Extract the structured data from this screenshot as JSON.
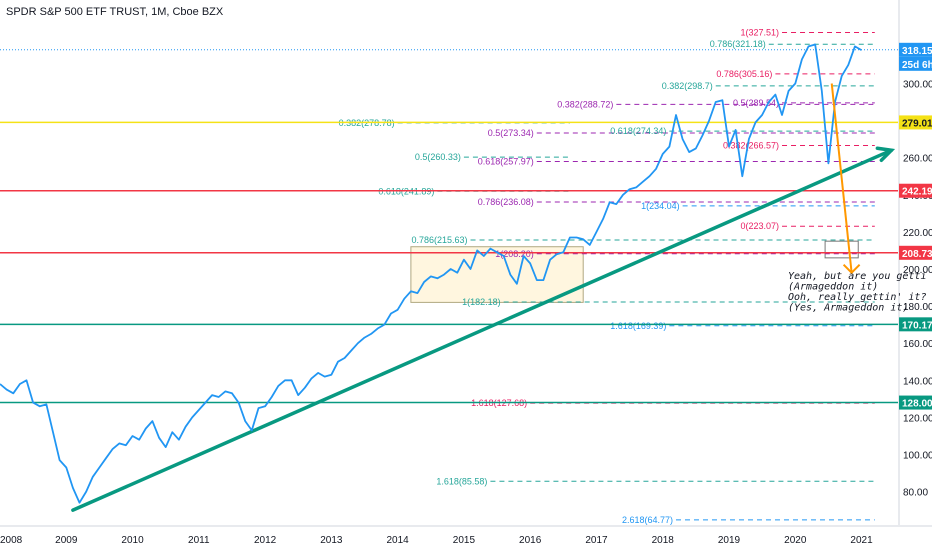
{
  "header": {
    "title": "SPDR S&P 500 ETF TRUST, 1M, Cboe BZX"
  },
  "countdown": "25d 6h",
  "note_lines": [
    "Yeah, but are you getti",
    "(Armageddon it)",
    "Ooh, really gettin' it?",
    "(Yes, Armageddon it)"
  ],
  "chart_data": {
    "type": "line",
    "title": "SPDR S&P 500 ETF TRUST, 1M, Cboe BZX",
    "xlabel": "",
    "ylabel": "",
    "x_ticks": [
      "2008",
      "2009",
      "2010",
      "2011",
      "2012",
      "2013",
      "2014",
      "2015",
      "2016",
      "2017",
      "2018",
      "2019",
      "2020",
      "2021"
    ],
    "y_ticks": [
      80,
      100,
      120,
      140,
      160,
      180,
      200,
      220,
      240,
      260,
      280,
      300
    ],
    "ylim": [
      62,
      345
    ],
    "xlim": [
      2008.0,
      2021.55
    ],
    "series": [
      {
        "color": "#2196f3",
        "points": [
          [
            2008.0,
            138
          ],
          [
            2008.1,
            135
          ],
          [
            2008.2,
            133
          ],
          [
            2008.3,
            138
          ],
          [
            2008.4,
            140
          ],
          [
            2008.5,
            128
          ],
          [
            2008.6,
            126
          ],
          [
            2008.7,
            127
          ],
          [
            2008.8,
            112
          ],
          [
            2008.9,
            97
          ],
          [
            2009.0,
            93
          ],
          [
            2009.1,
            82
          ],
          [
            2009.2,
            74
          ],
          [
            2009.3,
            80
          ],
          [
            2009.4,
            88
          ],
          [
            2009.5,
            93
          ],
          [
            2009.6,
            98
          ],
          [
            2009.7,
            103
          ],
          [
            2009.8,
            106
          ],
          [
            2009.9,
            105
          ],
          [
            2010.0,
            110
          ],
          [
            2010.1,
            108
          ],
          [
            2010.2,
            114
          ],
          [
            2010.3,
            118
          ],
          [
            2010.4,
            109
          ],
          [
            2010.5,
            104
          ],
          [
            2010.6,
            112
          ],
          [
            2010.7,
            108
          ],
          [
            2010.8,
            115
          ],
          [
            2010.9,
            120
          ],
          [
            2011.0,
            124
          ],
          [
            2011.1,
            128
          ],
          [
            2011.2,
            132
          ],
          [
            2011.3,
            131
          ],
          [
            2011.4,
            134
          ],
          [
            2011.5,
            133
          ],
          [
            2011.6,
            128
          ],
          [
            2011.7,
            118
          ],
          [
            2011.8,
            113
          ],
          [
            2011.9,
            125
          ],
          [
            2012.0,
            126
          ],
          [
            2012.1,
            131
          ],
          [
            2012.2,
            137
          ],
          [
            2012.3,
            140
          ],
          [
            2012.4,
            140
          ],
          [
            2012.5,
            132
          ],
          [
            2012.6,
            136
          ],
          [
            2012.7,
            141
          ],
          [
            2012.8,
            144
          ],
          [
            2012.9,
            142
          ],
          [
            2013.0,
            143
          ],
          [
            2013.1,
            150
          ],
          [
            2013.2,
            152
          ],
          [
            2013.3,
            156
          ],
          [
            2013.4,
            160
          ],
          [
            2013.5,
            163
          ],
          [
            2013.6,
            165
          ],
          [
            2013.7,
            168
          ],
          [
            2013.8,
            170
          ],
          [
            2013.9,
            176
          ],
          [
            2014.0,
            178
          ],
          [
            2014.1,
            184
          ],
          [
            2014.2,
            188
          ],
          [
            2014.3,
            187
          ],
          [
            2014.4,
            193
          ],
          [
            2014.5,
            196
          ],
          [
            2014.6,
            195
          ],
          [
            2014.7,
            197
          ],
          [
            2014.8,
            200
          ],
          [
            2014.9,
            198
          ],
          [
            2015.0,
            205
          ],
          [
            2015.1,
            200
          ],
          [
            2015.2,
            210
          ],
          [
            2015.3,
            207
          ],
          [
            2015.4,
            211
          ],
          [
            2015.5,
            209
          ],
          [
            2015.6,
            207
          ],
          [
            2015.7,
            197
          ],
          [
            2015.8,
            192
          ],
          [
            2015.9,
            207
          ],
          [
            2016.0,
            203
          ],
          [
            2016.1,
            194
          ],
          [
            2016.2,
            194
          ],
          [
            2016.3,
            205
          ],
          [
            2016.4,
            208
          ],
          [
            2016.5,
            209
          ],
          [
            2016.6,
            217
          ],
          [
            2016.7,
            217
          ],
          [
            2016.8,
            216
          ],
          [
            2016.9,
            213
          ],
          [
            2017.0,
            220
          ],
          [
            2017.1,
            227
          ],
          [
            2017.2,
            236
          ],
          [
            2017.3,
            235
          ],
          [
            2017.4,
            240
          ],
          [
            2017.5,
            243
          ],
          [
            2017.6,
            244
          ],
          [
            2017.7,
            247
          ],
          [
            2017.8,
            250
          ],
          [
            2017.9,
            254
          ],
          [
            2018.0,
            262
          ],
          [
            2018.1,
            266
          ],
          [
            2018.2,
            283
          ],
          [
            2018.3,
            270
          ],
          [
            2018.4,
            263
          ],
          [
            2018.5,
            265
          ],
          [
            2018.6,
            272
          ],
          [
            2018.7,
            280
          ],
          [
            2018.8,
            290
          ],
          [
            2018.9,
            291
          ],
          [
            2019.0,
            266
          ],
          [
            2019.1,
            275
          ],
          [
            2019.2,
            250
          ],
          [
            2019.3,
            270
          ],
          [
            2019.4,
            279
          ],
          [
            2019.5,
            283
          ],
          [
            2019.6,
            290
          ],
          [
            2019.7,
            294
          ],
          [
            2019.8,
            283
          ],
          [
            2019.9,
            296
          ],
          [
            2020.0,
            300
          ],
          [
            2020.1,
            313
          ],
          [
            2020.2,
            320
          ],
          [
            2020.3,
            321
          ],
          [
            2020.4,
            296
          ],
          [
            2020.5,
            257
          ],
          [
            2020.6,
            290
          ],
          [
            2020.7,
            304
          ],
          [
            2020.8,
            310
          ],
          [
            2020.9,
            320
          ],
          [
            2021.0,
            318
          ]
        ]
      }
    ],
    "horizontal_levels": [
      {
        "value": 318.15,
        "label": "318.15",
        "color": "#2196f3",
        "style": "dotted"
      },
      {
        "value": 279.01,
        "label": "279.01",
        "color": "#f5e216",
        "style": "solid"
      },
      {
        "value": 242.19,
        "label": "242.19",
        "color": "#f23645",
        "style": "solid"
      },
      {
        "value": 208.73,
        "label": "208.73",
        "color": "#f23645",
        "style": "solid"
      },
      {
        "value": 170.17,
        "label": "170.17",
        "color": "#089981",
        "style": "solid"
      },
      {
        "value": 128.0,
        "label": "128.00",
        "color": "#089981",
        "style": "solid"
      }
    ],
    "fib_levels": [
      {
        "text": "1(327.51)",
        "value": 327.51,
        "color": "#e91e63",
        "x0": 2019.8,
        "x1": 2021.2
      },
      {
        "text": "0.786(321.18)",
        "value": 321.18,
        "color": "#26a69a",
        "x0": 2019.6,
        "x1": 2021.2
      },
      {
        "text": "0.786(305.16)",
        "value": 305.16,
        "color": "#e91e63",
        "x0": 2019.7,
        "x1": 2021.2
      },
      {
        "text": "0.382(298.7)",
        "value": 298.7,
        "color": "#26a69a",
        "x0": 2018.8,
        "x1": 2021.2
      },
      {
        "text": "0.382(288.72)",
        "value": 288.72,
        "color": "#9c27b0",
        "x0": 2017.3,
        "x1": 2021.2
      },
      {
        "text": "0.5(289.54)",
        "value": 289.54,
        "color": "#9c27b0",
        "x0": 2019.8,
        "x1": 2021.2
      },
      {
        "text": "0.382(278.78)",
        "value": 278.78,
        "color": "#26a69a",
        "x0": 2014.0,
        "x1": 2016.6
      },
      {
        "text": "0.5(273.34)",
        "value": 273.34,
        "color": "#9c27b0",
        "x0": 2016.1,
        "x1": 2021.2
      },
      {
        "text": "0.618(274.34)",
        "value": 274.34,
        "color": "#26a69a",
        "x0": 2018.1,
        "x1": 2021.2
      },
      {
        "text": "0.382(266.57)",
        "value": 266.57,
        "color": "#e91e63",
        "x0": 2019.8,
        "x1": 2021.2
      },
      {
        "text": "0.5(260.33)",
        "value": 260.33,
        "color": "#26a69a",
        "x0": 2015.0,
        "x1": 2016.6
      },
      {
        "text": "0.618(257.97)",
        "value": 257.97,
        "color": "#9c27b0",
        "x0": 2016.1,
        "x1": 2021.2
      },
      {
        "text": "0.618(241.89)",
        "value": 241.89,
        "color": "#26a69a",
        "x0": 2014.6,
        "x1": 2016.6
      },
      {
        "text": "0.786(236.08)",
        "value": 236.08,
        "color": "#9c27b0",
        "x0": 2016.1,
        "x1": 2021.2
      },
      {
        "text": "1(234.04)",
        "value": 234.04,
        "color": "#2196f3",
        "x0": 2018.3,
        "x1": 2021.2
      },
      {
        "text": "0(223.07)",
        "value": 223.07,
        "color": "#e91e63",
        "x0": 2019.8,
        "x1": 2021.2
      },
      {
        "text": "0.786(215.63)",
        "value": 215.63,
        "color": "#26a69a",
        "x0": 2015.1,
        "x1": 2021.2
      },
      {
        "text": "1(208.20)",
        "value": 208.2,
        "color": "#9c27b0",
        "x0": 2016.1,
        "x1": 2021.2
      },
      {
        "text": "1(182.18)",
        "value": 182.18,
        "color": "#26a69a",
        "x0": 2015.6,
        "x1": 2021.2
      },
      {
        "text": "1.618(169.39)",
        "value": 169.39,
        "color": "#2196f3",
        "x0": 2018.1,
        "x1": 2021.2
      },
      {
        "text": "1.618(127.68)",
        "value": 127.68,
        "color": "#e91e63",
        "x0": 2016.0,
        "x1": 2021.2
      },
      {
        "text": "1.618(85.58)",
        "value": 85.58,
        "color": "#26a69a",
        "x0": 2015.4,
        "x1": 2021.2
      },
      {
        "text": "2.618(64.77)",
        "value": 64.77,
        "color": "#2196f3",
        "x0": 2018.2,
        "x1": 2021.2
      }
    ],
    "trendline": {
      "color": "#089981",
      "from": [
        2009.1,
        70
      ],
      "to": [
        2021.45,
        264
      ]
    },
    "projection_arrow": {
      "color": "#ff9800",
      "from": [
        2020.55,
        300
      ],
      "to": [
        2020.85,
        198
      ]
    },
    "boxes": [
      {
        "x": [
          2014.2,
          2016.8
        ],
        "y": [
          182,
          212
        ],
        "fill": "#fff6df",
        "stroke": "#b0a880"
      },
      {
        "x": [
          2020.45,
          2020.95
        ],
        "y": [
          206,
          215
        ],
        "fill": "none",
        "stroke": "#777777"
      }
    ]
  }
}
